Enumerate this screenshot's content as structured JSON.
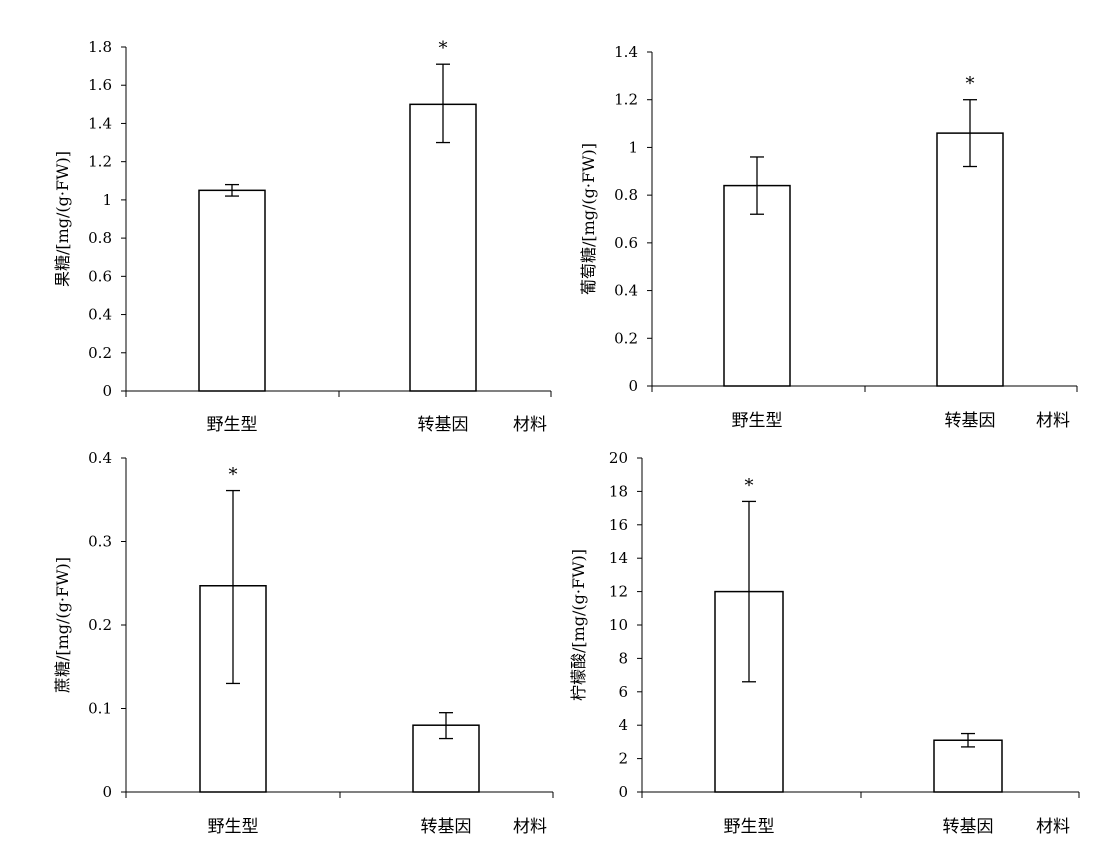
{
  "chart_data": [
    {
      "type": "bar",
      "categories": [
        "野生型",
        "转基因"
      ],
      "xlabel": "材料",
      "ylabel": "果糖/[mg/(g·FW)]",
      "ylim": [
        0,
        1.8
      ],
      "yticks": [
        "0",
        "0.2",
        "0.4",
        "0.6",
        "0.8",
        "1",
        "1.2",
        "1.4",
        "1.6",
        "1.8"
      ],
      "values": [
        1.05,
        1.5
      ],
      "error_low": [
        1.02,
        1.3
      ],
      "error_high": [
        1.08,
        1.71
      ],
      "significance": [
        "",
        "*"
      ]
    },
    {
      "type": "bar",
      "categories": [
        "野生型",
        "转基因"
      ],
      "xlabel": "材料",
      "ylabel": "葡萄糖/[mg/(g·FW)]",
      "ylim": [
        0,
        1.4
      ],
      "yticks": [
        "0",
        "0.2",
        "0.4",
        "0.6",
        "0.8",
        "1",
        "1.2",
        "1.4"
      ],
      "values": [
        0.84,
        1.06
      ],
      "error_low": [
        0.72,
        0.92
      ],
      "error_high": [
        0.96,
        1.2
      ],
      "significance": [
        "",
        "*"
      ]
    },
    {
      "type": "bar",
      "categories": [
        "野生型",
        "转基因"
      ],
      "xlabel": "材料",
      "ylabel": "蔗糖/[mg/(g·FW)]",
      "ylim": [
        0,
        0.4
      ],
      "yticks": [
        "0",
        "0.1",
        "0.2",
        "0.3",
        "0.4"
      ],
      "values": [
        0.247,
        0.08
      ],
      "error_low": [
        0.13,
        0.064
      ],
      "error_high": [
        0.361,
        0.095
      ],
      "significance": [
        "*",
        ""
      ]
    },
    {
      "type": "bar",
      "categories": [
        "野生型",
        "转基因"
      ],
      "xlabel": "材料",
      "ylabel": "柠檬酸/[mg/(g·FW)]",
      "ylim": [
        0,
        20
      ],
      "yticks": [
        "0",
        "2",
        "4",
        "6",
        "8",
        "10",
        "12",
        "14",
        "16",
        "18",
        "20"
      ],
      "values": [
        12.0,
        3.1
      ],
      "error_low": [
        6.6,
        2.7
      ],
      "error_high": [
        17.4,
        3.5
      ],
      "significance": [
        "*",
        ""
      ]
    }
  ]
}
